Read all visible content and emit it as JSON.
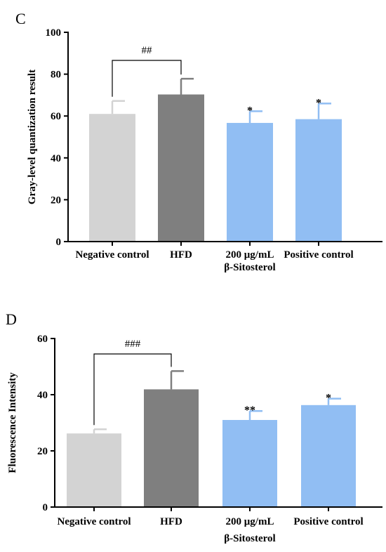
{
  "chart_data": [
    {
      "type": "bar",
      "panel": "C",
      "ylabel": "Gray-level quantization result",
      "ylim": [
        0,
        100
      ],
      "yticks": [
        "0",
        "20",
        "40",
        "60",
        "80",
        "100"
      ],
      "categories": [
        [
          "Negative control"
        ],
        [
          "HFD"
        ],
        [
          "200 μg/mL",
          "β-Sitosterol"
        ],
        [
          "Positive control"
        ]
      ],
      "values": [
        61,
        70.3,
        56.7,
        58.5
      ],
      "errors": [
        6.2,
        7.5,
        5.6,
        7.5
      ],
      "colors": [
        "#d3d3d3",
        "#7f7f7f",
        "#91bef3",
        "#91bef3"
      ],
      "significance": [
        "",
        "",
        "*",
        "*"
      ],
      "comparison": {
        "from": 0,
        "to": 1,
        "label": "##"
      }
    },
    {
      "type": "bar",
      "panel": "D",
      "ylabel": "Fluorescence Intensity",
      "ylim": [
        0,
        60
      ],
      "yticks": [
        "0",
        "20",
        "40",
        "60"
      ],
      "categories": [
        [
          "Negative control"
        ],
        [
          "HFD"
        ],
        [
          "200 μg/mL",
          "β-Sitosterol"
        ],
        [
          "Positive control"
        ]
      ],
      "values": [
        26.2,
        41.9,
        31,
        36.3
      ],
      "errors": [
        1.5,
        6.5,
        3.2,
        2.3
      ],
      "colors": [
        "#d3d3d3",
        "#7f7f7f",
        "#91bef3",
        "#91bef3"
      ],
      "significance": [
        "",
        "",
        "**",
        "*"
      ],
      "comparison": {
        "from": 0,
        "to": 1,
        "label": "###"
      }
    }
  ]
}
